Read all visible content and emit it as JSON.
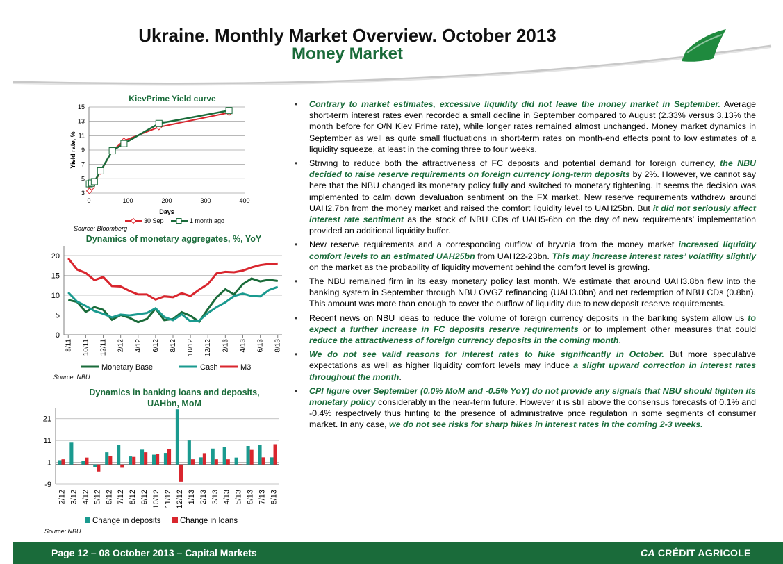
{
  "header": {
    "title": "Ukraine. Monthly Market Overview. October 2013",
    "subtitle": "Money Market"
  },
  "colors": {
    "green": "#1a6b3a",
    "teal": "#1a9a8f",
    "red": "#d9262e"
  },
  "chart_data": [
    {
      "type": "line",
      "title": "KievPrime Yield curve",
      "xlabel": "Days",
      "ylabel": "Yield rate, %",
      "xlim": [
        0,
        400
      ],
      "ylim": [
        3,
        15
      ],
      "xticks": [
        "0",
        "100",
        "200",
        "300",
        "400"
      ],
      "yticks": [
        "3",
        "5",
        "7",
        "9",
        "11",
        "13",
        "15"
      ],
      "series": [
        {
          "name": "30 Sep",
          "color": "#d9262e",
          "x": [
            1,
            7,
            14,
            30,
            60,
            90,
            180,
            360
          ],
          "y": [
            3.3,
            3.8,
            4.5,
            6.0,
            8.9,
            10.3,
            12.2,
            14.2
          ]
        },
        {
          "name": "1 month ago",
          "color": "#1a6b3a",
          "x": [
            1,
            7,
            14,
            30,
            60,
            90,
            180,
            360
          ],
          "y": [
            4.3,
            4.4,
            4.6,
            6.1,
            8.9,
            9.9,
            12.7,
            14.5
          ]
        }
      ],
      "source": "Source: Bloomberg"
    },
    {
      "type": "line",
      "title": "Dynamics of monetary aggregates, %, YoY",
      "ylim": [
        0,
        20
      ],
      "yticks": [
        "0",
        "5",
        "10",
        "15",
        "20"
      ],
      "categories": [
        "8/11",
        "9/11",
        "10/11",
        "11/11",
        "12/11",
        "1/12",
        "2/12",
        "3/12",
        "4/12",
        "5/12",
        "6/12",
        "7/12",
        "8/12",
        "9/12",
        "10/12",
        "11/12",
        "12/12",
        "1/13",
        "2/13",
        "3/13",
        "4/13",
        "5/13",
        "6/13",
        "7/13",
        "8/13"
      ],
      "tick_labels": [
        "8/11",
        "10/11",
        "12/11",
        "2/12",
        "4/12",
        "6/12",
        "8/12",
        "10/12",
        "12/12",
        "2/13",
        "4/13",
        "6/13",
        "8/13"
      ],
      "series": [
        {
          "name": "Monetary Base",
          "color": "#1a6b3a",
          "values": [
            8.8,
            8.3,
            5.8,
            7.0,
            6.3,
            3.8,
            5.0,
            4.3,
            3.2,
            4.0,
            6.6,
            3.7,
            4.0,
            5.7,
            4.8,
            3.3,
            6.5,
            9.5,
            11.5,
            10.2,
            12.8,
            14.2,
            13.5,
            13.9,
            13.6
          ]
        },
        {
          "name": "Cash",
          "color": "#1a9a8f",
          "values": [
            10.7,
            8.4,
            7.3,
            6.0,
            5.3,
            4.4,
            5.1,
            4.9,
            5.2,
            5.5,
            6.7,
            4.5,
            3.7,
            5.2,
            3.4,
            3.6,
            5.5,
            7.0,
            8.2,
            9.8,
            10.4,
            9.8,
            9.7,
            11.3,
            12.1
          ]
        },
        {
          "name": "M3",
          "color": "#d9262e",
          "values": [
            19.3,
            16.5,
            15.6,
            13.8,
            14.6,
            12.3,
            12.2,
            11.1,
            10.2,
            10.2,
            8.9,
            9.7,
            9.5,
            10.5,
            9.8,
            11.4,
            12.8,
            15.5,
            15.9,
            15.8,
            16.2,
            17.0,
            17.6,
            17.9,
            18.0
          ]
        }
      ],
      "source": "Source: NBU"
    },
    {
      "type": "bar",
      "title": "Dynamics in banking loans and deposits, UAHbn, MoM",
      "ylim": [
        -9,
        26
      ],
      "yticks": [
        "-9",
        "1",
        "11",
        "21"
      ],
      "categories": [
        "2/12",
        "3/12",
        "4/12",
        "5/12",
        "6/12",
        "7/12",
        "8/12",
        "9/12",
        "10/12",
        "11/12",
        "12/12",
        "1/13",
        "2/13",
        "3/13",
        "4/13",
        "5/13",
        "6/13",
        "7/13",
        "8/13"
      ],
      "series": [
        {
          "name": "Change in deposits",
          "color": "#1a9a8f",
          "values": [
            2.0,
            10.0,
            1.7,
            -1.3,
            5.6,
            9.1,
            3.7,
            6.8,
            4.5,
            5.3,
            25.3,
            11.0,
            3.3,
            7.3,
            8.0,
            3.2,
            8.5,
            9.0,
            3.3
          ]
        },
        {
          "name": "Change in loans",
          "color": "#d9262e",
          "values": [
            2.4,
            0.1,
            3.2,
            -3.2,
            4.0,
            -1.5,
            3.5,
            5.6,
            4.8,
            7.0,
            -8.0,
            2.4,
            5.2,
            2.4,
            2.4,
            0.1,
            6.7,
            3.3,
            9.3
          ]
        }
      ],
      "source": "Source: NBU"
    }
  ],
  "bullets": [
    [
      {
        "t": "Contrary to market estimates, excessive liquidity did not leave the money market in September.",
        "g": true
      },
      {
        "t": " Average short-term interest rates even recorded a small decline in September compared to August (2.33% versus 3.13% the month before for O/N Kiev Prime rate), while longer rates remained almost unchanged. Money market dynamics in September as well as quite small fluctuations in short-term rates on month-end effects point to low estimates of a liquidity squeeze, at least in the coming three to four weeks."
      }
    ],
    [
      {
        "t": "Striving to reduce both the attractiveness of FC deposits and potential demand for foreign currency, "
      },
      {
        "t": "the NBU decided to raise reserve requirements on foreign currency long-term deposits",
        "g": true
      },
      {
        "t": " by 2%. However, we cannot say here that the NBU changed its monetary policy fully and switched to monetary tightening. It seems the decision was implemented to calm down devaluation sentiment on the FX market. New reserve requirements withdrew around UAH2.7bn from the money market and raised the comfort liquidity level to UAH25bn. But "
      },
      {
        "t": "it did not seriously affect interest rate sentiment",
        "g": true
      },
      {
        "t": " as the stock of NBU CDs of UAH5-6bn on the day of new requirements’ implementation provided an additional liquidity buffer."
      }
    ],
    [
      {
        "t": "New reserve requirements and a corresponding outflow of hryvnia from the money market "
      },
      {
        "t": "increased liquidity comfort levels to an estimated UAH25bn",
        "g": true
      },
      {
        "t": " from UAH22-23bn. "
      },
      {
        "t": "This may increase interest rates’ volatility slightly",
        "g": true
      },
      {
        "t": " on the market as the probability of liquidity movement behind the comfort level is growing."
      }
    ],
    [
      {
        "t": "The NBU remained firm in its easy monetary policy last month. We estimate that around UAH3.8bn flew into the banking system in September through NBU OVGZ refinancing (UAH3.0bn) and net redemption of NBU CDs (0.8bn). This amount was more than enough to cover the outflow of liquidity due to new deposit reserve requirements."
      }
    ],
    [
      {
        "t": "Recent news on NBU ideas to reduce the volume of foreign currency deposits in the banking system allow us "
      },
      {
        "t": "to expect a further increase in FC deposits reserve requirements",
        "g": true
      },
      {
        "t": " or to implement other measures that could "
      },
      {
        "t": "reduce the attractiveness of foreign currency deposits in the coming month",
        "g": true
      },
      {
        "t": "."
      }
    ],
    [
      {
        "t": "We do not see valid reasons for interest rates to hike significantly in October.",
        "g": true
      },
      {
        "t": " But more speculative expectations as well as higher liquidity comfort levels may induce "
      },
      {
        "t": "a slight upward correction in interest rates throughout the month",
        "g": true
      },
      {
        "t": "."
      }
    ],
    [
      {
        "t": "CPI figure over September (0.0% MoM and -0.5% YoY) do not provide any signals that NBU should tighten its monetary policy",
        "g": true
      },
      {
        "t": " considerably in the near-term future. However it is still above the consensus forecasts of 0.1% and -0.4% respectively thus hinting to the presence of administrative price regulation in some segments of consumer market. In any case, "
      },
      {
        "t": "we do not see risks for sharp hikes in interest rates in the coming 2-3 weeks.",
        "g": true
      }
    ]
  ],
  "footer": {
    "page_text": "Page 12 – 08 October 2013 – Capital Markets",
    "logo_text": "CRÉDIT AGRICOLE"
  }
}
